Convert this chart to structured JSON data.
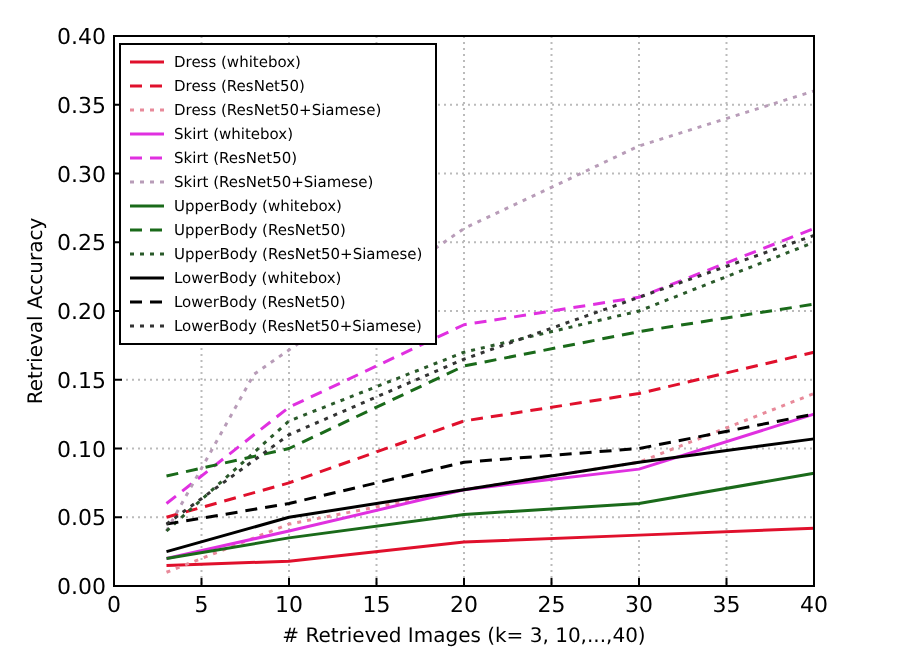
{
  "chart_data": {
    "type": "line",
    "xlabel": "# Retrieved Images (k= 3, 10,...,40)",
    "ylabel": "Retrieval Accuracy",
    "x": [
      3,
      10,
      20,
      30,
      40
    ],
    "xlim": [
      0,
      40
    ],
    "xticks": [
      0,
      5,
      10,
      15,
      20,
      25,
      30,
      35,
      40
    ],
    "ylim": [
      0,
      0.4
    ],
    "yticks": [
      {
        "value": 0,
        "label": "0.00"
      },
      {
        "value": 0.05,
        "label": "0.05"
      },
      {
        "value": 0.1,
        "label": "0.10"
      },
      {
        "value": 0.15,
        "label": "0.15"
      },
      {
        "value": 0.2,
        "label": "0.20"
      },
      {
        "value": 0.25,
        "label": "0.25"
      },
      {
        "value": 0.3,
        "label": "0.30"
      },
      {
        "value": 0.35,
        "label": "0.35"
      },
      {
        "value": 0.4,
        "label": "0.40"
      }
    ],
    "grid": true,
    "legend": "top left",
    "marker": "none",
    "series": [
      {
        "name": "Dress (whitebox)",
        "color": "#e0102c",
        "line_style": "solid",
        "values": [
          0.015,
          0.018,
          0.032,
          0.037,
          0.042
        ]
      },
      {
        "name": "Dress (ResNet50)",
        "color": "#e0102c",
        "line_style": "dashed",
        "values": [
          0.05,
          0.075,
          0.12,
          0.14,
          0.17
        ]
      },
      {
        "name": "Dress (ResNet50+Siamese)",
        "color": "#e88a9a",
        "line_style": "dotted",
        "values": [
          0.01,
          0.045,
          0.07,
          0.09,
          0.14
        ]
      },
      {
        "name": "Skirt (whitebox)",
        "color": "#e030e0",
        "line_style": "solid",
        "values": [
          0.02,
          0.04,
          0.07,
          0.085,
          0.125
        ]
      },
      {
        "name": "Skirt (ResNet50)",
        "color": "#e030e0",
        "line_style": "dashed",
        "values": [
          0.06,
          0.13,
          0.19,
          0.21,
          0.26
        ]
      },
      {
        "name": "Skirt (ResNet50+Siamese)",
        "color": "#b89cb8",
        "line_style": "dotted",
        "x": [
          3,
          8,
          20,
          30,
          40
        ],
        "values": [
          0.04,
          0.154,
          0.26,
          0.32,
          0.36
        ]
      },
      {
        "name": "UpperBody (whitebox)",
        "color": "#1a6a1a",
        "line_style": "solid",
        "values": [
          0.02,
          0.035,
          0.052,
          0.06,
          0.082
        ]
      },
      {
        "name": "UpperBody (ResNet50)",
        "color": "#1a6a1a",
        "line_style": "dashed",
        "values": [
          0.08,
          0.1,
          0.16,
          0.185,
          0.205
        ]
      },
      {
        "name": "UpperBody (ResNet50+Siamese)",
        "color": "#2a5a2a",
        "line_style": "dotted",
        "values": [
          0.04,
          0.12,
          0.17,
          0.2,
          0.25
        ]
      },
      {
        "name": "LowerBody (whitebox)",
        "color": "#000000",
        "line_style": "solid",
        "values": [
          0.025,
          0.05,
          0.07,
          0.09,
          0.107
        ]
      },
      {
        "name": "LowerBody (ResNet50)",
        "color": "#000000",
        "line_style": "dashed",
        "values": [
          0.045,
          0.06,
          0.09,
          0.1,
          0.125
        ]
      },
      {
        "name": "LowerBody (ResNet50+Siamese)",
        "color": "#333333",
        "line_style": "dotted",
        "values": [
          0.045,
          0.11,
          0.165,
          0.21,
          0.255
        ]
      }
    ]
  }
}
